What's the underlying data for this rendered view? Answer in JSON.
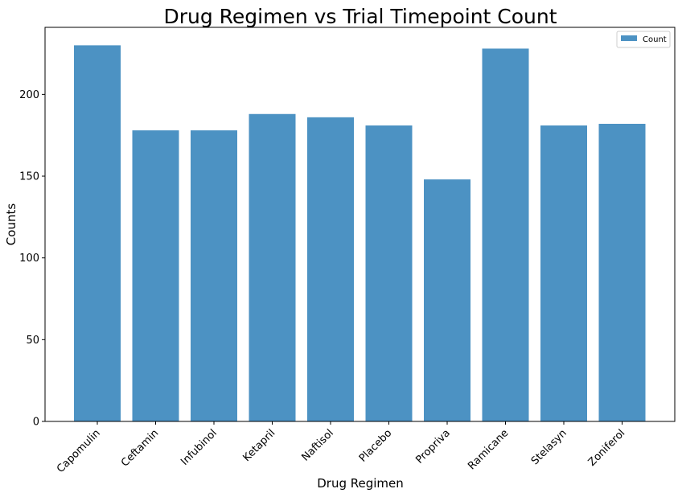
{
  "chart_data": {
    "type": "bar",
    "title": "Drug Regimen vs Trial Timepoint Count",
    "xlabel": "Drug Regimen",
    "ylabel": "Counts",
    "categories": [
      "Capomulin",
      "Ceftamin",
      "Infubinol",
      "Ketapril",
      "Naftisol",
      "Placebo",
      "Propriva",
      "Ramicane",
      "Stelasyn",
      "Zoniferol"
    ],
    "series": [
      {
        "name": "Count",
        "values": [
          230,
          178,
          178,
          188,
          186,
          181,
          148,
          228,
          181,
          182
        ],
        "color": "#4c92c3"
      }
    ],
    "ylim": [
      0,
      241
    ],
    "yticks": [
      0,
      50,
      100,
      150,
      200
    ],
    "grid": false,
    "legend_position": "top-right",
    "xtick_rotation": "45°"
  }
}
